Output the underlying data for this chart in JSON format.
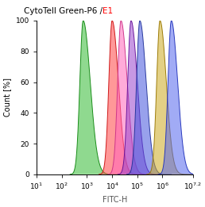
{
  "title_black": "CytoTell Green-P6 /",
  "title_red": "E1",
  "xlabel": "FITC-H",
  "ylabel": "Count [%]",
  "xlim_log": [
    1,
    7.2
  ],
  "ylim": [
    0,
    100
  ],
  "yticks": [
    0,
    20,
    40,
    60,
    80,
    100
  ],
  "peaks_log": [
    2.85,
    4.0,
    4.35,
    4.75,
    5.1,
    5.9,
    6.35
  ],
  "sigma_left": [
    0.13,
    0.13,
    0.13,
    0.13,
    0.13,
    0.13,
    0.13
  ],
  "sigma_right": [
    0.28,
    0.25,
    0.25,
    0.25,
    0.25,
    0.25,
    0.25
  ],
  "colors_fill": [
    "#33bb33",
    "#ff4444",
    "#ff66bb",
    "#9944cc",
    "#4455dd",
    "#ccaa22",
    "#5566ee"
  ],
  "colors_edge": [
    "#118811",
    "#cc1111",
    "#cc3388",
    "#661199",
    "#223399",
    "#997700",
    "#2233bb"
  ],
  "alphas_fill": [
    0.55,
    0.55,
    0.55,
    0.55,
    0.55,
    0.55,
    0.55
  ],
  "alphas_edge": [
    0.9,
    0.9,
    0.9,
    0.9,
    0.9,
    0.9,
    0.9
  ],
  "zorder": [
    1,
    2,
    3,
    4,
    5,
    6,
    7
  ],
  "background": "#ffffff",
  "xlabel_color": "#555555",
  "title_fontsize": 7.5,
  "axis_fontsize": 6.5,
  "label_fontsize": 7
}
